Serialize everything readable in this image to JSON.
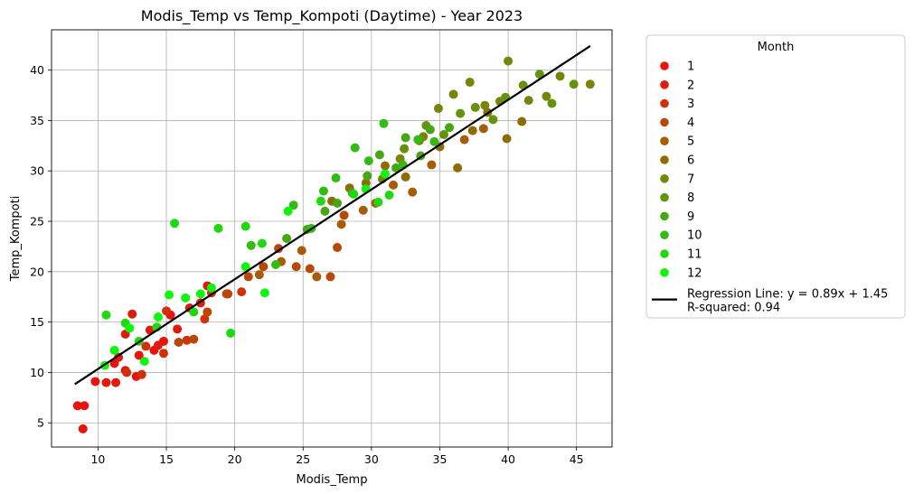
{
  "chart_data": {
    "type": "scatter",
    "title": "Modis_Temp vs Temp_Kompoti (Daytime) - Year 2023",
    "xlabel": "Modis_Temp",
    "ylabel": "Temp_Kompoti",
    "xlim": [
      6.6,
      47.6
    ],
    "ylim": [
      2.6,
      44.0
    ],
    "xticks": [
      10,
      15,
      20,
      25,
      30,
      35,
      40,
      45
    ],
    "yticks": [
      5,
      10,
      15,
      20,
      25,
      30,
      35,
      40
    ],
    "grid": true,
    "legend": {
      "title": "Month",
      "placement": "outside-right",
      "entries": [
        "1",
        "2",
        "3",
        "4",
        "5",
        "6",
        "7",
        "8",
        "9",
        "10",
        "11",
        "12"
      ],
      "line_entry": [
        "Regression Line: y = 0.89x + 1.45",
        "R-squared: 0.94"
      ]
    },
    "series": [
      {
        "name": "1",
        "color": "#e8120f",
        "points": [
          [
            8.5,
            6.7
          ],
          [
            9.0,
            6.7
          ],
          [
            8.9,
            4.4
          ],
          [
            9.8,
            9.1
          ],
          [
            11.2,
            10.9
          ],
          [
            12.0,
            10.2
          ],
          [
            12.8,
            9.6
          ],
          [
            13.0,
            11.7
          ],
          [
            14.1,
            12.2
          ],
          [
            14.8,
            13.1
          ],
          [
            15.3,
            15.7
          ]
        ]
      },
      {
        "name": "2",
        "color": "#df1b0c",
        "points": [
          [
            10.6,
            9.0
          ],
          [
            11.3,
            9.0
          ],
          [
            11.5,
            11.5
          ],
          [
            12.0,
            13.8
          ],
          [
            12.5,
            15.8
          ],
          [
            13.8,
            14.2
          ],
          [
            14.4,
            12.7
          ],
          [
            15.8,
            14.3
          ],
          [
            16.7,
            16.4
          ],
          [
            17.5,
            16.9
          ],
          [
            18.0,
            18.6
          ]
        ]
      },
      {
        "name": "3",
        "color": "#d23009",
        "points": [
          [
            12.1,
            10.0
          ],
          [
            13.2,
            9.8
          ],
          [
            13.5,
            12.6
          ],
          [
            14.8,
            11.9
          ],
          [
            15.0,
            16.1
          ],
          [
            16.5,
            13.2
          ],
          [
            17.8,
            15.3
          ],
          [
            18.3,
            17.9
          ],
          [
            19.5,
            17.8
          ],
          [
            20.5,
            18.0
          ]
        ]
      },
      {
        "name": "4",
        "color": "#b84806",
        "points": [
          [
            15.9,
            13.0
          ],
          [
            17.0,
            13.3
          ],
          [
            18.0,
            16.0
          ],
          [
            19.4,
            17.8
          ],
          [
            21.0,
            19.5
          ],
          [
            22.1,
            20.5
          ],
          [
            23.2,
            22.3
          ],
          [
            24.5,
            20.5
          ],
          [
            25.5,
            20.3
          ],
          [
            27.0,
            19.5
          ],
          [
            27.5,
            22.4
          ],
          [
            28.0,
            25.6
          ]
        ]
      },
      {
        "name": "5",
        "color": "#a85c05",
        "points": [
          [
            21.8,
            19.7
          ],
          [
            23.4,
            21.0
          ],
          [
            24.9,
            22.1
          ],
          [
            26.0,
            19.5
          ],
          [
            27.8,
            24.7
          ],
          [
            29.4,
            26.1
          ],
          [
            30.3,
            26.8
          ],
          [
            31.6,
            28.6
          ],
          [
            33.0,
            27.9
          ],
          [
            34.4,
            30.6
          ],
          [
            36.8,
            33.1
          ],
          [
            38.2,
            34.2
          ]
        ]
      },
      {
        "name": "6",
        "color": "#8c6d04",
        "points": [
          [
            27.1,
            27.0
          ],
          [
            28.4,
            28.3
          ],
          [
            29.6,
            28.8
          ],
          [
            31.0,
            30.5
          ],
          [
            32.5,
            29.4
          ],
          [
            33.5,
            33.0
          ],
          [
            35.0,
            32.4
          ],
          [
            36.3,
            30.3
          ],
          [
            37.4,
            34.0
          ],
          [
            38.5,
            35.8
          ],
          [
            39.9,
            33.2
          ],
          [
            41.0,
            34.9
          ]
        ]
      },
      {
        "name": "7",
        "color": "#78850a",
        "points": [
          [
            30.8,
            29.2
          ],
          [
            32.1,
            31.2
          ],
          [
            33.8,
            33.4
          ],
          [
            34.9,
            36.2
          ],
          [
            36.0,
            37.6
          ],
          [
            37.2,
            38.8
          ],
          [
            38.3,
            36.5
          ],
          [
            39.4,
            36.9
          ],
          [
            40.0,
            40.9
          ],
          [
            41.5,
            37.0
          ],
          [
            42.8,
            37.4
          ],
          [
            43.8,
            39.4
          ],
          [
            46.0,
            38.6
          ]
        ]
      },
      {
        "name": "8",
        "color": "#629410",
        "points": [
          [
            32.4,
            32.2
          ],
          [
            34.0,
            34.5
          ],
          [
            35.3,
            33.6
          ],
          [
            36.5,
            35.7
          ],
          [
            37.6,
            36.3
          ],
          [
            38.9,
            35.1
          ],
          [
            39.8,
            37.3
          ],
          [
            41.1,
            38.5
          ],
          [
            42.3,
            39.6
          ],
          [
            43.2,
            36.7
          ],
          [
            44.8,
            38.6
          ]
        ]
      },
      {
        "name": "9",
        "color": "#48a614",
        "points": [
          [
            23.8,
            23.3
          ],
          [
            25.3,
            24.2
          ],
          [
            26.6,
            26.0
          ],
          [
            27.5,
            26.8
          ],
          [
            28.6,
            27.8
          ],
          [
            29.7,
            29.5
          ],
          [
            30.6,
            31.6
          ],
          [
            31.8,
            30.3
          ],
          [
            32.5,
            33.3
          ],
          [
            33.6,
            31.5
          ],
          [
            34.3,
            34.1
          ],
          [
            35.7,
            34.3
          ]
        ]
      },
      {
        "name": "10",
        "color": "#31bb13",
        "points": [
          [
            21.2,
            22.6
          ],
          [
            23.0,
            20.7
          ],
          [
            24.3,
            26.6
          ],
          [
            25.6,
            24.3
          ],
          [
            26.5,
            28.0
          ],
          [
            27.4,
            29.3
          ],
          [
            28.8,
            32.3
          ],
          [
            29.8,
            31.0
          ],
          [
            30.9,
            34.7
          ],
          [
            32.3,
            30.6
          ],
          [
            33.4,
            33.1
          ],
          [
            34.6,
            32.9
          ]
        ]
      },
      {
        "name": "11",
        "color": "#20d810",
        "points": [
          [
            10.6,
            15.7
          ],
          [
            12.0,
            14.9
          ],
          [
            13.0,
            13.1
          ],
          [
            14.3,
            14.5
          ],
          [
            15.6,
            24.8
          ],
          [
            17.0,
            16.0
          ],
          [
            18.8,
            24.3
          ],
          [
            19.7,
            13.9
          ],
          [
            20.8,
            24.5
          ],
          [
            22.0,
            22.8
          ],
          [
            26.3,
            27.0
          ],
          [
            28.7,
            27.7
          ],
          [
            30.5,
            26.9
          ],
          [
            31.3,
            27.6
          ]
        ]
      },
      {
        "name": "12",
        "color": "#0ef50e",
        "points": [
          [
            10.5,
            10.7
          ],
          [
            11.2,
            12.2
          ],
          [
            12.3,
            14.4
          ],
          [
            13.4,
            11.1
          ],
          [
            14.4,
            15.5
          ],
          [
            15.2,
            17.7
          ],
          [
            16.4,
            17.4
          ],
          [
            17.5,
            17.8
          ],
          [
            18.3,
            18.4
          ],
          [
            20.8,
            20.5
          ],
          [
            22.2,
            17.9
          ],
          [
            23.9,
            26.0
          ],
          [
            29.6,
            28.2
          ],
          [
            31.0,
            29.7
          ]
        ]
      }
    ],
    "regression": {
      "slope": 0.89,
      "intercept": 1.45,
      "x_range": [
        8.3,
        46.0
      ],
      "color": "#000000"
    }
  }
}
